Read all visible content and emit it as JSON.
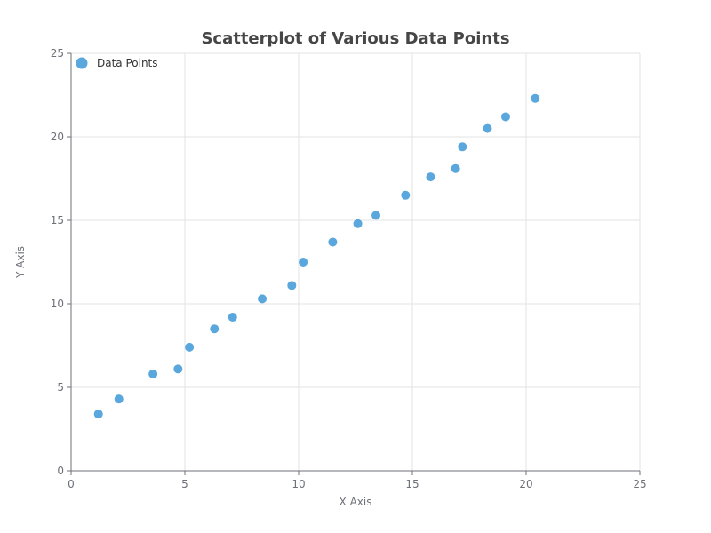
{
  "chart_data": {
    "type": "scatter",
    "title": "Scatterplot of Various Data Points",
    "xlabel": "X Axis",
    "ylabel": "Y Axis",
    "xlim": [
      0,
      25
    ],
    "ylim": [
      0,
      25
    ],
    "xticks": [
      0,
      5,
      10,
      15,
      20,
      25
    ],
    "yticks": [
      0,
      5,
      10,
      15,
      20,
      25
    ],
    "grid": true,
    "legend_position": "top-left",
    "series": [
      {
        "name": "Data Points",
        "color": "#5aa7dd",
        "points": [
          {
            "x": 1.2,
            "y": 3.4
          },
          {
            "x": 2.1,
            "y": 4.3
          },
          {
            "x": 3.6,
            "y": 5.8
          },
          {
            "x": 4.7,
            "y": 6.1
          },
          {
            "x": 5.2,
            "y": 7.4
          },
          {
            "x": 6.3,
            "y": 8.5
          },
          {
            "x": 7.1,
            "y": 9.2
          },
          {
            "x": 8.4,
            "y": 10.3
          },
          {
            "x": 9.7,
            "y": 11.1
          },
          {
            "x": 10.2,
            "y": 12.5
          },
          {
            "x": 11.5,
            "y": 13.7
          },
          {
            "x": 12.6,
            "y": 14.8
          },
          {
            "x": 13.4,
            "y": 15.3
          },
          {
            "x": 14.7,
            "y": 16.5
          },
          {
            "x": 15.8,
            "y": 17.6
          },
          {
            "x": 16.9,
            "y": 18.1
          },
          {
            "x": 17.2,
            "y": 19.4
          },
          {
            "x": 18.3,
            "y": 20.5
          },
          {
            "x": 19.1,
            "y": 21.2
          },
          {
            "x": 20.4,
            "y": 22.3
          }
        ]
      }
    ]
  }
}
